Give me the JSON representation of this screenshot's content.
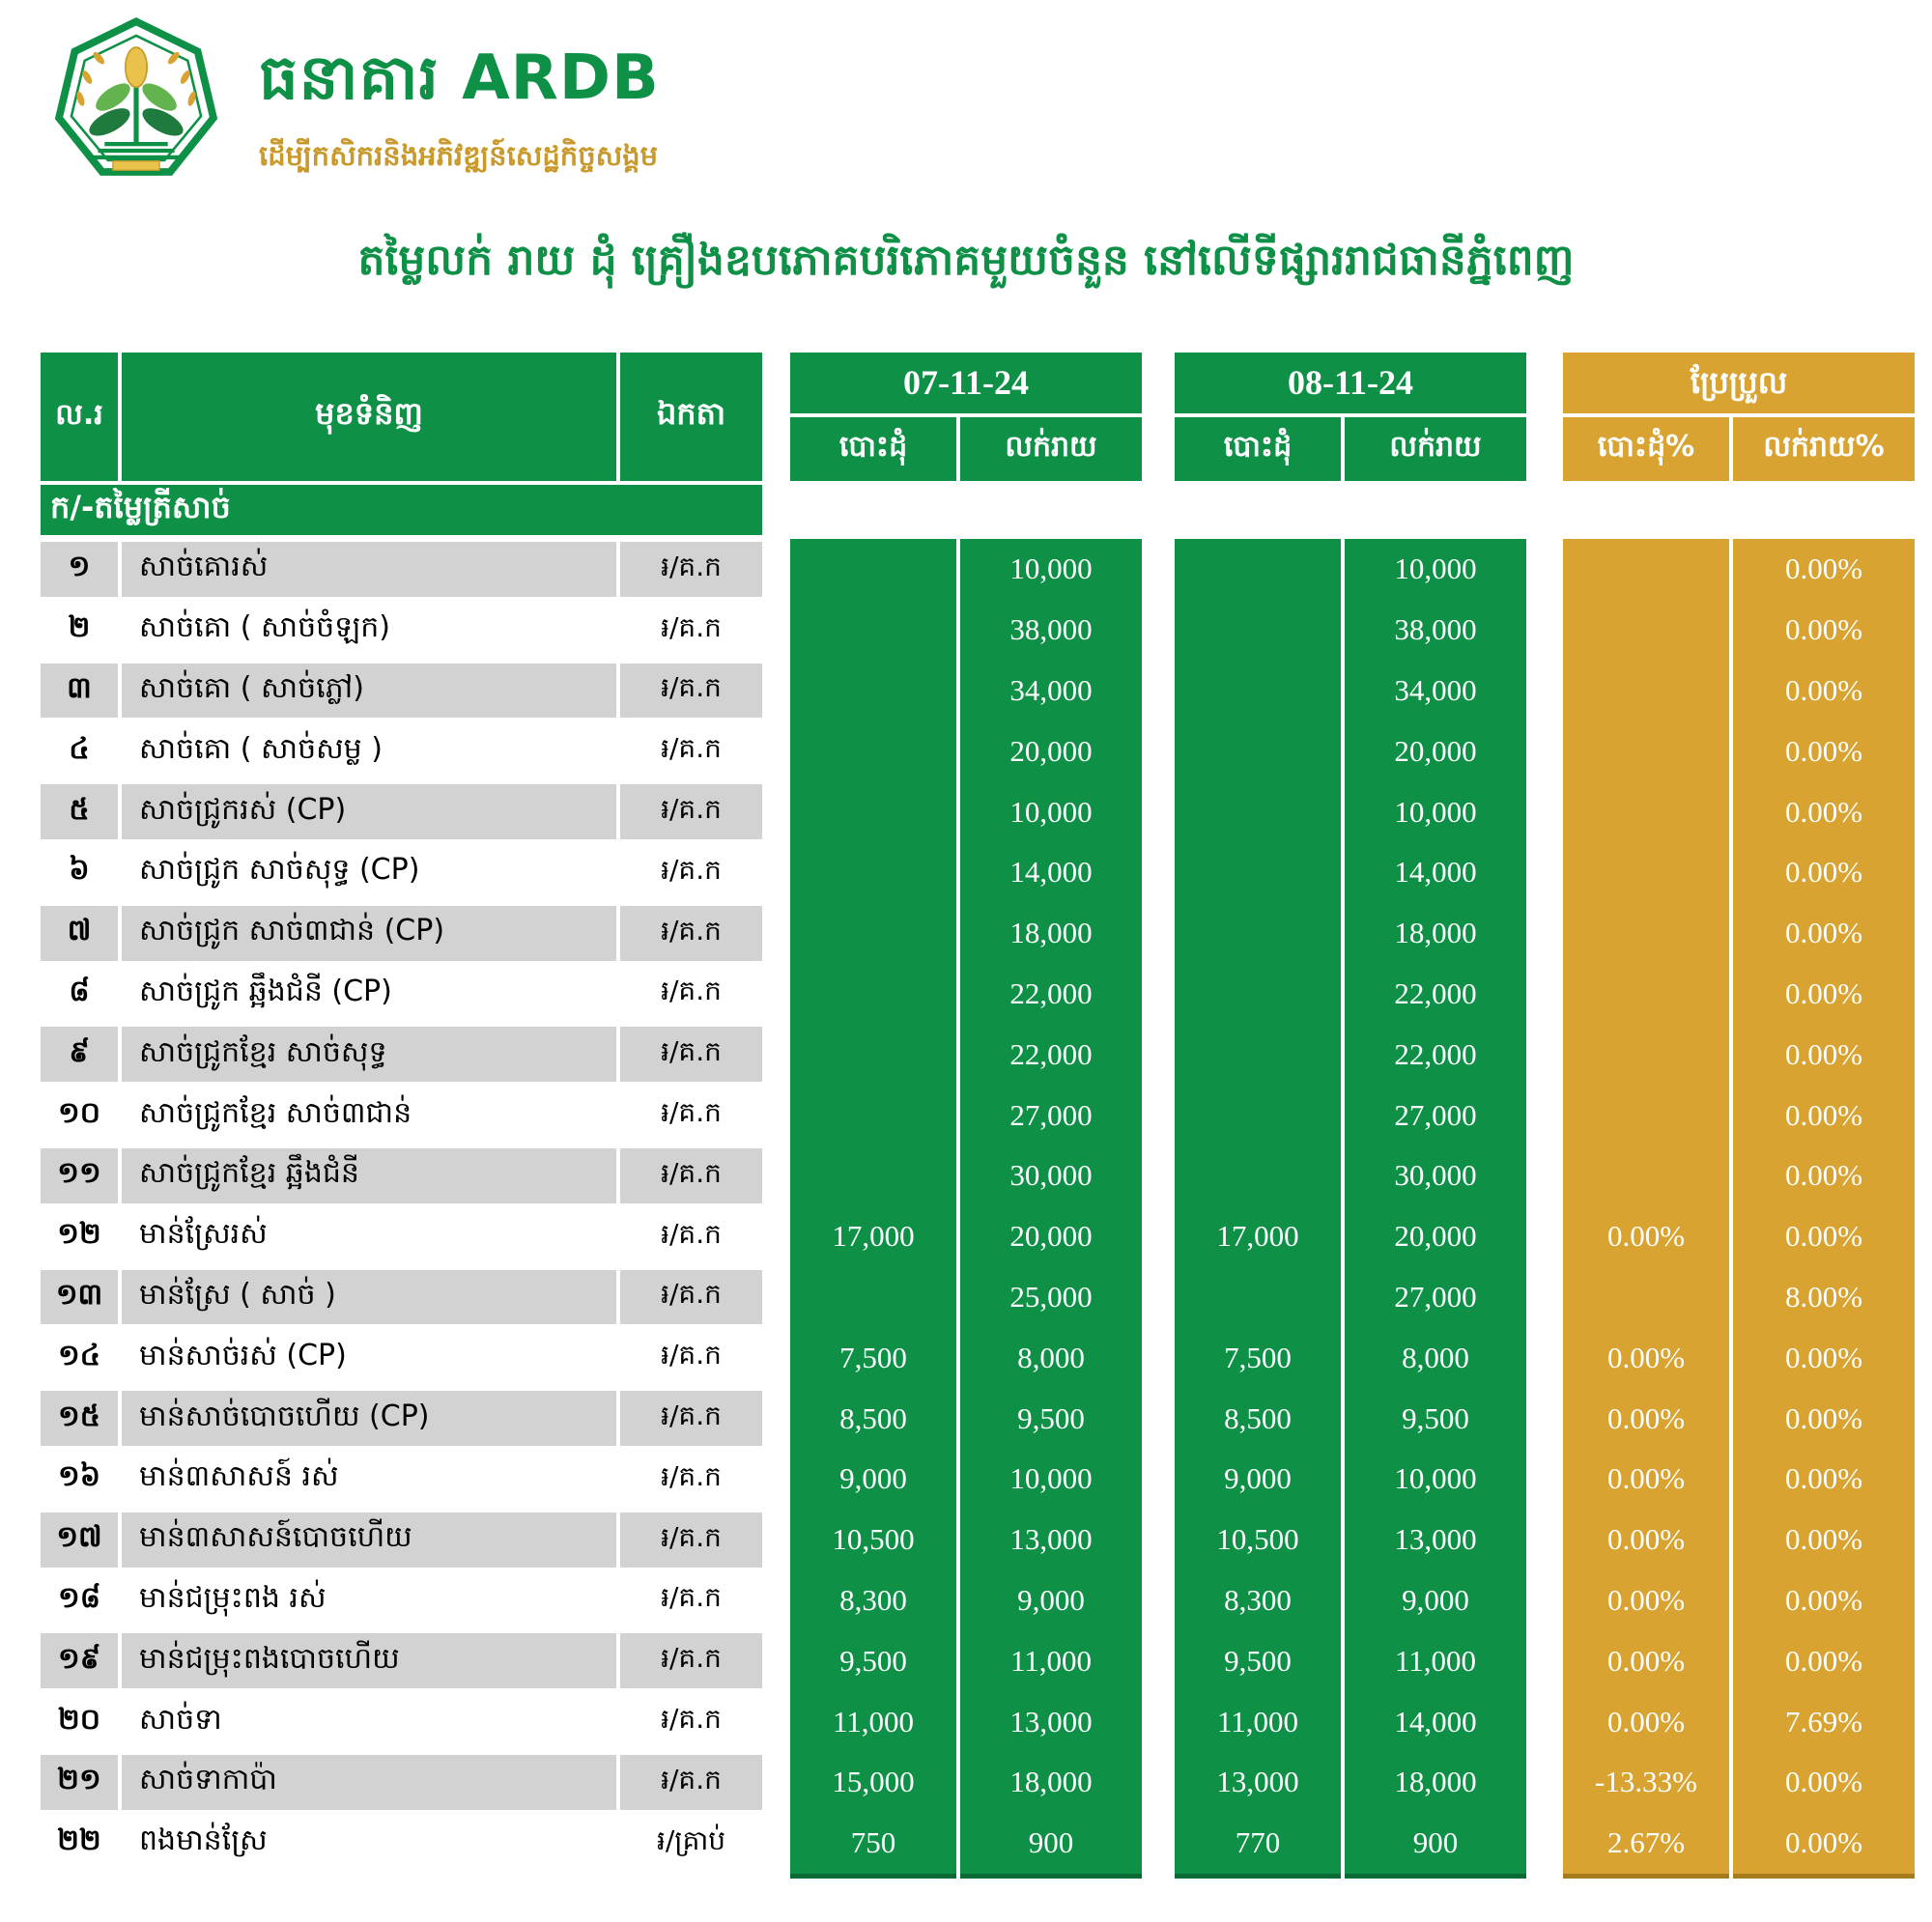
{
  "brand": {
    "name": "ធនាគារ ARDB",
    "tagline": "ដើម្បីកសិករនិងអភិវឌ្ឍន៍សេដ្ឋកិច្ចសង្គម"
  },
  "title": "តម្លៃលក់ រាយ ដុំ គ្រឿងឧបភោគបរិភោគមួយចំនួន នៅលើទីផ្សាររាជធានីភ្នំពេញ",
  "colors": {
    "green": "#0E9147",
    "gold": "#D8A331",
    "stripe": "#d2d2d2"
  },
  "table": {
    "headers": {
      "no": "ល.រ",
      "item": "មុខទំនិញ",
      "unit": "ឯកតា",
      "date1": "07-11-24",
      "date2": "08-11-24",
      "change": "ប្រែប្រួល",
      "wholesale": "បោះដុំ",
      "retail": "លក់រាយ",
      "wholesale_pct": "បោះដុំ%",
      "retail_pct": "លក់រាយ%"
    },
    "section": "ក/-តម្លៃត្រីសាច់",
    "rows": [
      {
        "no": "១",
        "item": "សាច់គោរស់",
        "unit": "៛/គ.ក",
        "d1w": "",
        "d1r": "10,000",
        "d2w": "",
        "d2r": "10,000",
        "cw": "",
        "cr": "0.00%"
      },
      {
        "no": "២",
        "item": "សាច់គោ ( សាច់ចំឡក)",
        "unit": "៛/គ.ក",
        "d1w": "",
        "d1r": "38,000",
        "d2w": "",
        "d2r": "38,000",
        "cw": "",
        "cr": "0.00%"
      },
      {
        "no": "៣",
        "item": "សាច់គោ ( សាច់ភ្លៅ)",
        "unit": "៛/គ.ក",
        "d1w": "",
        "d1r": "34,000",
        "d2w": "",
        "d2r": "34,000",
        "cw": "",
        "cr": "0.00%"
      },
      {
        "no": "៤",
        "item": "សាច់គោ ( សាច់សម្ល )",
        "unit": "៛/គ.ក",
        "d1w": "",
        "d1r": "20,000",
        "d2w": "",
        "d2r": "20,000",
        "cw": "",
        "cr": "0.00%"
      },
      {
        "no": "៥",
        "item": "សាច់ជ្រូករស់ (CP)",
        "unit": "៛/គ.ក",
        "d1w": "",
        "d1r": "10,000",
        "d2w": "",
        "d2r": "10,000",
        "cw": "",
        "cr": "0.00%"
      },
      {
        "no": "៦",
        "item": "សាច់ជ្រូក សាច់សុទ្ធ (CP)",
        "unit": "៛/គ.ក",
        "d1w": "",
        "d1r": "14,000",
        "d2w": "",
        "d2r": "14,000",
        "cw": "",
        "cr": "0.00%"
      },
      {
        "no": "៧",
        "item": "សាច់ជ្រូក សាច់៣ជាន់ (CP)",
        "unit": "៛/គ.ក",
        "d1w": "",
        "d1r": "18,000",
        "d2w": "",
        "d2r": "18,000",
        "cw": "",
        "cr": "0.00%"
      },
      {
        "no": "៨",
        "item": "សាច់ជ្រូក ឆ្អឹងជំនី (CP)",
        "unit": "៛/គ.ក",
        "d1w": "",
        "d1r": "22,000",
        "d2w": "",
        "d2r": "22,000",
        "cw": "",
        "cr": "0.00%"
      },
      {
        "no": "៩",
        "item": "សាច់ជ្រូកខ្មែរ សាច់សុទ្ធ",
        "unit": "៛/គ.ក",
        "d1w": "",
        "d1r": "22,000",
        "d2w": "",
        "d2r": "22,000",
        "cw": "",
        "cr": "0.00%"
      },
      {
        "no": "១០",
        "item": "សាច់ជ្រូកខ្មែរ សាច់៣ជាន់",
        "unit": "៛/គ.ក",
        "d1w": "",
        "d1r": "27,000",
        "d2w": "",
        "d2r": "27,000",
        "cw": "",
        "cr": "0.00%"
      },
      {
        "no": "១១",
        "item": "សាច់ជ្រូកខ្មែរ ឆ្អឹងជំនី",
        "unit": "៛/គ.ក",
        "d1w": "",
        "d1r": "30,000",
        "d2w": "",
        "d2r": "30,000",
        "cw": "",
        "cr": "0.00%"
      },
      {
        "no": "១២",
        "item": "មាន់ស្រែរស់",
        "unit": "៛/គ.ក",
        "d1w": "17,000",
        "d1r": "20,000",
        "d2w": "17,000",
        "d2r": "20,000",
        "cw": "0.00%",
        "cr": "0.00%"
      },
      {
        "no": "១៣",
        "item": "មាន់ស្រែ ( សាច់ )",
        "unit": "៛/គ.ក",
        "d1w": "",
        "d1r": "25,000",
        "d2w": "",
        "d2r": "27,000",
        "cw": "",
        "cr": "8.00%"
      },
      {
        "no": "១៤",
        "item": "មាន់សាច់រស់ (CP)",
        "unit": "៛/គ.ក",
        "d1w": "7,500",
        "d1r": "8,000",
        "d2w": "7,500",
        "d2r": "8,000",
        "cw": "0.00%",
        "cr": "0.00%"
      },
      {
        "no": "១៥",
        "item": "មាន់សាច់បោចហើយ (CP)",
        "unit": "៛/គ.ក",
        "d1w": "8,500",
        "d1r": "9,500",
        "d2w": "8,500",
        "d2r": "9,500",
        "cw": "0.00%",
        "cr": "0.00%"
      },
      {
        "no": "១៦",
        "item": "មាន់៣សាសន៍ រស់",
        "unit": "៛/គ.ក",
        "d1w": "9,000",
        "d1r": "10,000",
        "d2w": "9,000",
        "d2r": "10,000",
        "cw": "0.00%",
        "cr": "0.00%"
      },
      {
        "no": "១៧",
        "item": "មាន់៣សាសន៍បោចហើយ",
        "unit": "៛/គ.ក",
        "d1w": "10,500",
        "d1r": "13,000",
        "d2w": "10,500",
        "d2r": "13,000",
        "cw": "0.00%",
        "cr": "0.00%"
      },
      {
        "no": "១៨",
        "item": "មាន់ជម្រុះពង រស់",
        "unit": "៛/គ.ក",
        "d1w": "8,300",
        "d1r": "9,000",
        "d2w": "8,300",
        "d2r": "9,000",
        "cw": "0.00%",
        "cr": "0.00%"
      },
      {
        "no": "១៩",
        "item": "មាន់ជម្រុះពងបោចហើយ",
        "unit": "៛/គ.ក",
        "d1w": "9,500",
        "d1r": "11,000",
        "d2w": "9,500",
        "d2r": "11,000",
        "cw": "0.00%",
        "cr": "0.00%"
      },
      {
        "no": "២០",
        "item": "សាច់ទា",
        "unit": "៛/គ.ក",
        "d1w": "11,000",
        "d1r": "13,000",
        "d2w": "11,000",
        "d2r": "14,000",
        "cw": "0.00%",
        "cr": "7.69%"
      },
      {
        "no": "២១",
        "item": "សាច់ទាកាប៉ា",
        "unit": "៛/គ.ក",
        "d1w": "15,000",
        "d1r": "18,000",
        "d2w": "13,000",
        "d2r": "18,000",
        "cw": "-13.33%",
        "cr": "0.00%"
      },
      {
        "no": "២២",
        "item": "ពងមាន់ស្រែ",
        "unit": "៛/គ្រាប់",
        "d1w": "750",
        "d1r": "900",
        "d2w": "770",
        "d2r": "900",
        "cw": "2.67%",
        "cr": "0.00%"
      }
    ]
  }
}
